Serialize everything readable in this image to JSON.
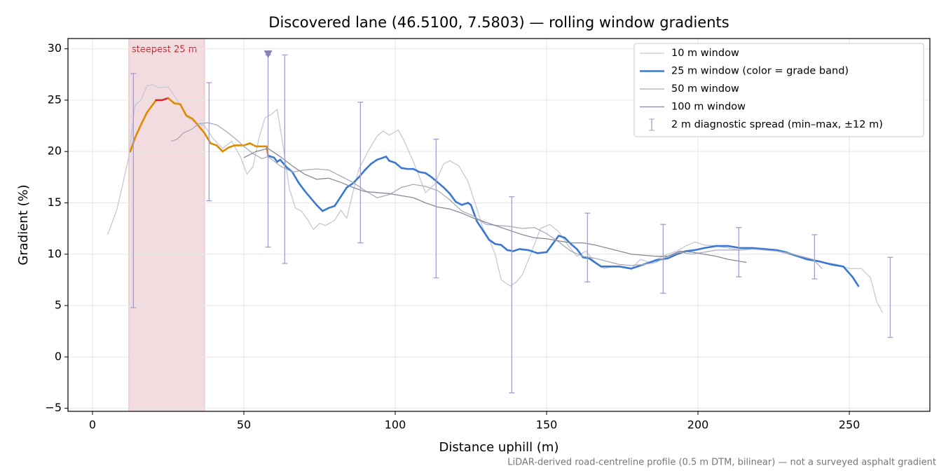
{
  "chart_data": {
    "type": "line",
    "title": "Discovered lane (46.5100, 7.5803) — rolling window gradients",
    "x_label": "Distance uphill (m)",
    "y_label": "Gradient (%)",
    "footnote": "LiDAR-derived road-centreline profile (0.5 m DTM, bilinear) — not a surveyed asphalt gradient",
    "xlim": [
      -8.1,
      276.6
    ],
    "ylim": [
      -5.3,
      31.0
    ],
    "xticks": [
      0,
      50,
      100,
      150,
      200,
      250
    ],
    "yticks": [
      {
        "value": -5,
        "label": "−5"
      },
      0,
      5,
      10,
      15,
      20,
      25,
      30
    ],
    "grid": true,
    "legend": "upper right",
    "highlight": {
      "x0": 12,
      "x1": 37,
      "label": "steepest 25 m",
      "color": "#f3dcdf",
      "label_color": "#c8202a"
    },
    "series": [
      {
        "name": "10 m window",
        "color": "#c3c9d4",
        "linewidth": 1.3,
        "x": [
          5,
          8,
          10,
          12,
          14,
          16,
          18,
          20,
          22,
          25,
          28,
          31,
          34,
          37,
          40,
          43,
          46,
          49,
          51,
          53,
          55,
          57,
          59,
          61,
          63,
          65,
          67,
          69,
          71,
          73,
          75,
          77,
          80,
          82,
          84,
          86,
          88,
          91,
          94,
          96,
          98,
          101,
          103,
          106,
          108,
          110,
          113,
          116,
          118,
          121,
          124,
          127,
          129,
          131,
          133,
          135,
          138,
          140,
          142,
          145,
          148,
          151,
          154,
          157,
          160,
          163,
          166,
          169,
          172,
          175,
          178,
          181,
          184,
          187,
          190,
          193,
          196,
          199,
          202,
          206,
          210,
          214,
          218,
          222,
          226,
          230,
          234,
          238,
          242,
          246,
          250,
          254,
          257,
          259,
          261
        ],
        "values": [
          11.9,
          14.3,
          16.8,
          19.5,
          24.5,
          25.0,
          26.4,
          26.5,
          26.2,
          26.3,
          25.0,
          23.4,
          22.8,
          22.5,
          21.2,
          20.3,
          21.0,
          19.4,
          17.8,
          18.5,
          21.3,
          23.3,
          23.6,
          24.1,
          20.5,
          16.4,
          14.5,
          14.2,
          13.4,
          12.4,
          13.0,
          12.8,
          13.3,
          14.3,
          13.5,
          16.0,
          18.3,
          20.0,
          21.5,
          22.0,
          21.6,
          22.1,
          21.0,
          19.0,
          17.5,
          16.0,
          16.8,
          18.8,
          19.1,
          18.6,
          17.1,
          14.4,
          12.5,
          11.5,
          10.0,
          7.5,
          6.9,
          7.3,
          8.0,
          10.2,
          12.5,
          12.9,
          12.2,
          10.9,
          9.8,
          10.3,
          9.2,
          8.6,
          8.8,
          8.8,
          8.6,
          9.5,
          9.2,
          9.6,
          10.0,
          10.3,
          10.8,
          11.2,
          10.9,
          10.8,
          10.6,
          10.4,
          10.5,
          10.5,
          10.3,
          10.0,
          9.7,
          9.5,
          9.2,
          9.0,
          8.6,
          8.6,
          7.7,
          5.4,
          4.3
        ]
      },
      {
        "name": "25 m window (color = grade band)",
        "color": "#3a78d4",
        "linewidth": 2.6,
        "band_thresholds": [
          20,
          25
        ],
        "band_colors": [
          "#3a78d4",
          "#e08a00",
          "#d62728"
        ],
        "x": [
          12.5,
          14,
          16,
          18,
          20,
          21,
          23,
          25,
          27,
          29,
          31,
          33,
          35,
          37,
          39,
          41,
          43,
          45,
          47,
          50,
          52,
          54,
          56,
          57.5,
          58,
          60,
          61,
          62,
          64,
          66,
          68,
          70,
          72,
          74,
          76,
          78,
          80,
          82,
          84,
          86,
          88,
          90,
          92,
          94,
          96,
          97,
          98,
          100,
          102,
          104,
          106,
          108,
          110,
          112,
          114,
          116,
          118,
          120,
          122,
          124,
          125,
          127,
          129,
          131,
          133,
          135,
          137,
          139,
          141,
          144,
          147,
          150,
          152,
          154,
          156,
          158,
          160,
          162,
          164,
          166,
          168,
          170,
          174,
          178,
          182,
          186,
          190,
          193,
          196,
          199,
          202,
          206,
          210,
          214,
          218,
          222,
          226,
          229,
          232,
          236,
          240,
          244,
          248,
          251,
          253
        ],
        "values": [
          20.0,
          21.3,
          22.6,
          23.8,
          24.6,
          25.0,
          25.0,
          25.2,
          24.7,
          24.6,
          23.5,
          23.2,
          22.5,
          21.8,
          20.8,
          20.6,
          20.0,
          20.4,
          20.6,
          20.6,
          20.8,
          20.5,
          20.5,
          20.5,
          19.6,
          19.4,
          19.0,
          19.2,
          18.5,
          18.0,
          17.0,
          16.2,
          15.5,
          14.8,
          14.2,
          14.5,
          14.7,
          15.6,
          16.5,
          16.9,
          17.5,
          18.2,
          18.8,
          19.2,
          19.4,
          19.5,
          19.1,
          18.9,
          18.4,
          18.3,
          18.3,
          18.0,
          17.9,
          17.5,
          17.0,
          16.5,
          15.9,
          15.1,
          14.8,
          15.0,
          14.8,
          13.2,
          12.3,
          11.4,
          11.0,
          10.9,
          10.4,
          10.3,
          10.5,
          10.4,
          10.1,
          10.2,
          11.0,
          11.8,
          11.6,
          11.0,
          10.5,
          9.7,
          9.6,
          9.2,
          8.8,
          8.8,
          8.8,
          8.6,
          9.0,
          9.4,
          9.6,
          10.0,
          10.3,
          10.4,
          10.6,
          10.8,
          10.8,
          10.6,
          10.6,
          10.5,
          10.4,
          10.2,
          9.9,
          9.5,
          9.3,
          9.0,
          8.8,
          7.8,
          6.9
        ]
      },
      {
        "name": "50 m window",
        "color": "#a7acbb",
        "linewidth": 1.3,
        "x": [
          26,
          28,
          30,
          33,
          35,
          38,
          41,
          44,
          47,
          50,
          53,
          56,
          58,
          62,
          66,
          70,
          74,
          78,
          82,
          86,
          90,
          94,
          98,
          102,
          106,
          110,
          114,
          118,
          122,
          126,
          130,
          134,
          138,
          142,
          146,
          150,
          154,
          158,
          162,
          166,
          170,
          174,
          178,
          182,
          186,
          190,
          194,
          198,
          202,
          206,
          210,
          214,
          218,
          222,
          226,
          230,
          234,
          238,
          241
        ],
        "values": [
          21.0,
          21.2,
          21.8,
          22.2,
          22.7,
          22.8,
          22.6,
          22.0,
          21.3,
          20.5,
          19.8,
          19.3,
          19.5,
          18.6,
          18.0,
          18.2,
          18.3,
          18.2,
          17.6,
          17.0,
          16.2,
          15.5,
          15.8,
          16.5,
          16.8,
          16.6,
          16.2,
          15.3,
          14.2,
          13.7,
          12.9,
          12.8,
          12.7,
          12.5,
          12.6,
          12.0,
          11.2,
          10.3,
          9.8,
          9.6,
          9.3,
          9.0,
          8.9,
          9.0,
          9.2,
          9.8,
          10.2,
          10.0,
          10.2,
          10.4,
          10.4,
          10.4,
          10.5,
          10.4,
          10.3,
          10.1,
          9.8,
          9.5,
          8.6
        ]
      },
      {
        "name": "100 m window",
        "color": "#868b99",
        "linewidth": 1.3,
        "x": [
          50,
          54,
          58,
          62,
          66,
          70,
          74,
          78,
          82,
          86,
          90,
          94,
          98,
          102,
          106,
          110,
          114,
          118,
          122,
          126,
          130,
          134,
          138,
          142,
          146,
          150,
          154,
          158,
          162,
          166,
          170,
          174,
          178,
          182,
          186,
          190,
          194,
          198,
          202,
          206,
          210,
          214,
          216
        ],
        "values": [
          19.4,
          20.0,
          20.3,
          19.5,
          18.6,
          17.8,
          17.3,
          17.4,
          17.0,
          16.5,
          16.1,
          16.0,
          15.9,
          15.7,
          15.5,
          15.0,
          14.6,
          14.4,
          14.0,
          13.5,
          13.1,
          12.7,
          12.3,
          11.9,
          11.6,
          11.5,
          11.3,
          11.1,
          11.1,
          10.9,
          10.6,
          10.3,
          10.0,
          9.9,
          9.8,
          9.8,
          10.3,
          10.2,
          10.0,
          9.8,
          9.5,
          9.3,
          9.2
        ]
      }
    ],
    "errorbars": {
      "name": "2 m diagnostic spread (min–max, ±12 m)",
      "color": "#a39fc4",
      "x": [
        13.5,
        38.5,
        58,
        63.5,
        88.5,
        113.5,
        138.5,
        163.5,
        188.5,
        213.5,
        238.5,
        263.5
      ],
      "low": [
        4.8,
        15.2,
        10.7,
        9.1,
        11.1,
        7.7,
        -3.5,
        7.3,
        6.2,
        7.8,
        7.6,
        1.9
      ],
      "high": [
        27.6,
        26.7,
        29.4,
        29.4,
        24.8,
        21.2,
        15.6,
        14.0,
        12.9,
        12.6,
        11.9,
        9.7
      ]
    },
    "marker": {
      "x": 58,
      "y": 29.5,
      "color": "#8a7fb5"
    }
  }
}
